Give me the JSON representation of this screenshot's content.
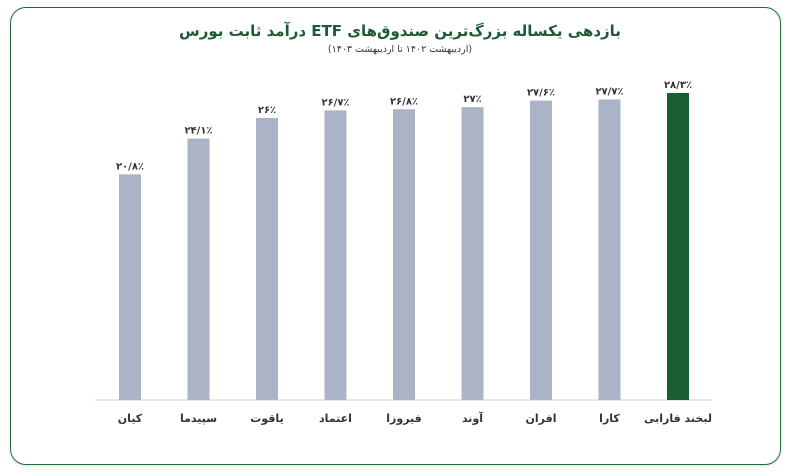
{
  "colors": {
    "bar": "#aab4c6",
    "highlight": "#1b5e33",
    "axis": "#cfcfcf",
    "border": "#1e6b3a"
  },
  "chart_data": {
    "type": "bar",
    "title": "بازدهی یکساله بزرگ‌ترین صندوق‌های ETF درآمد ثابت بورس",
    "subtitle": "(اردیبهشت ۱۴۰۲ تا اردیبهشت ۱۴۰۳)",
    "categories": [
      "کیان",
      "سپیدما",
      "یاقوت",
      "اعتماد",
      "فیروزا",
      "آوند",
      "افران",
      "کارا",
      "لبخند فارابی"
    ],
    "values": [
      20.8,
      24.1,
      26.0,
      26.7,
      26.8,
      27.0,
      27.6,
      27.7,
      28.3
    ],
    "value_labels": [
      "۲۰/۸٪",
      "۲۴/۱٪",
      "۲۶٪",
      "۲۶/۷٪",
      "۲۶/۸٪",
      "۲۷٪",
      "۲۷/۶٪",
      "۲۷/۷٪",
      "۲۸/۳٪"
    ],
    "highlight_index": 8,
    "ylim": [
      0,
      28.3
    ],
    "grid": false,
    "xlabel": "",
    "ylabel": ""
  }
}
